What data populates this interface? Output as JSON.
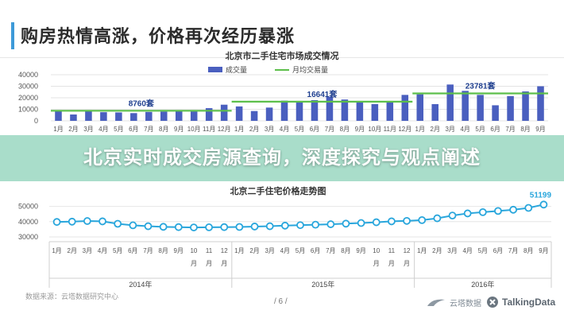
{
  "page": {
    "title": "购房热情高涨，价格再次经历暴涨",
    "banner": "北京实时成交房源查询，深度探究与观点阐述",
    "source": "数据来源：云塔数据研究中心",
    "page_number": "/ 6 /",
    "logos": {
      "yunta": "云塔数据",
      "talkingdata": "TalkingData"
    },
    "colors": {
      "bar": "#4a5fbf",
      "avg_line": "#5cbf4a",
      "price_line": "#29a6dc",
      "banner": "#96d6be"
    }
  },
  "chart_data": [
    {
      "type": "bar",
      "title": "北京市二手住宅市场成交情况",
      "legend": [
        "成交量",
        "月均交易量"
      ],
      "legend_position": "top",
      "categories": [
        "1月",
        "2月",
        "3月",
        "4月",
        "5月",
        "6月",
        "7月",
        "8月",
        "9月",
        "10月",
        "11月",
        "12月",
        "1月",
        "2月",
        "3月",
        "4月",
        "5月",
        "6月",
        "7月",
        "8月",
        "9月",
        "10月",
        "11月",
        "12月",
        "1月",
        "2月",
        "3月",
        "4月",
        "5月",
        "6月",
        "7月",
        "8月",
        "9月"
      ],
      "series": [
        {
          "name": "成交量",
          "values": [
            9000,
            5500,
            8500,
            7500,
            7300,
            6700,
            7700,
            8000,
            8300,
            8200,
            11000,
            14000,
            12500,
            8500,
            11500,
            17500,
            16000,
            18000,
            21000,
            18500,
            17000,
            14500,
            17000,
            22500,
            23000,
            14500,
            31500,
            26000,
            22500,
            13500,
            21500,
            25500,
            30000
          ]
        },
        {
          "name": "月均交易量",
          "segments": [
            {
              "from": 0,
              "to": 11,
              "value": 8760,
              "label": "8760套"
            },
            {
              "from": 12,
              "to": 23,
              "value": 16641,
              "label": "16641套"
            },
            {
              "from": 24,
              "to": 32,
              "value": 23781,
              "label": "23781套"
            }
          ]
        }
      ],
      "yticks": [
        "0",
        "10000",
        "20000",
        "30000",
        "40000"
      ],
      "ylim": [
        0,
        40000
      ],
      "grid": true
    },
    {
      "type": "line",
      "title": "北京二手住宅价格走势图",
      "x": [
        "1月",
        "2月",
        "3月",
        "4月",
        "5月",
        "6月",
        "7月",
        "8月",
        "9月",
        "10月",
        "11月",
        "12月",
        "1月",
        "2月",
        "3月",
        "4月",
        "5月",
        "6月",
        "7月",
        "8月",
        "9月",
        "10月",
        "11月",
        "12月",
        "1月",
        "2月",
        "3月",
        "4月",
        "5月",
        "6月",
        "7月",
        "8月",
        "9月"
      ],
      "x_label_line2": [
        "",
        "",
        "",
        "",
        "",
        "",
        "",
        "",
        "",
        "月",
        "月",
        "月",
        "",
        "",
        "",
        "",
        "",
        "",
        "",
        "",
        "",
        "月",
        "月",
        "月",
        "",
        "",
        "",
        "",
        "",
        "",
        "",
        "",
        ""
      ],
      "groups": [
        {
          "label": "2014年",
          "from": 0,
          "to": 11
        },
        {
          "label": "2015年",
          "from": 12,
          "to": 23
        },
        {
          "label": "2016年",
          "from": 24,
          "to": 32
        }
      ],
      "series": [
        {
          "values": [
            39800,
            40000,
            40400,
            40200,
            38600,
            37600,
            37000,
            36600,
            36400,
            36200,
            36300,
            36400,
            36500,
            36800,
            37000,
            37400,
            37700,
            38000,
            38300,
            38700,
            39100,
            39600,
            40200,
            40500,
            41000,
            42200,
            44000,
            45400,
            46200,
            47000,
            47800,
            49000,
            51199
          ]
        }
      ],
      "end_label": "51199",
      "yticks": [
        "30000",
        "40000",
        "50000"
      ],
      "ylim": [
        30000,
        55000
      ],
      "grid": true
    }
  ]
}
